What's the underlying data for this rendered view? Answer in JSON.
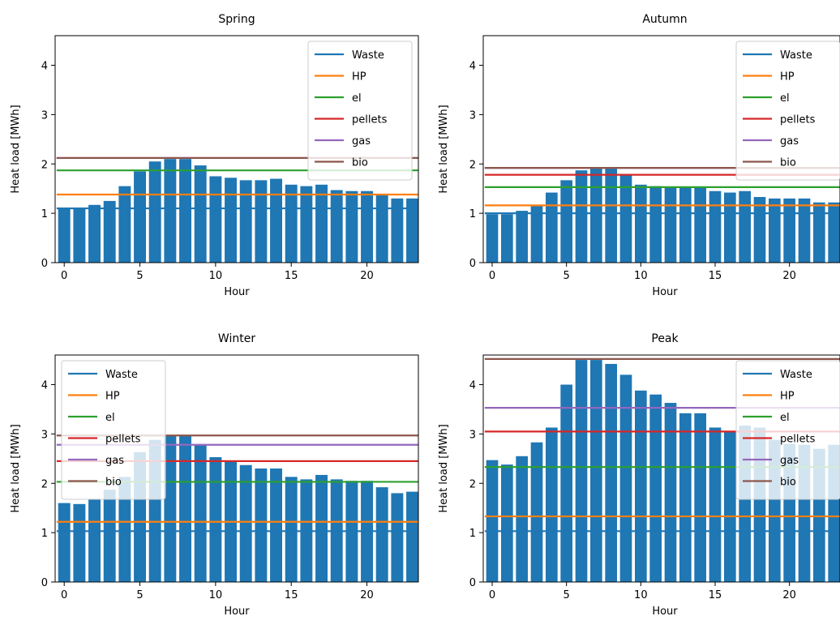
{
  "chart_data": [
    {
      "type": "bar",
      "title": "Spring",
      "xlabel": "Hour",
      "ylabel": "Heat load [MWh]",
      "xlim": [
        -0.6,
        23.4
      ],
      "ylim": [
        0,
        4.6
      ],
      "xticks": [
        0,
        5,
        10,
        15,
        20
      ],
      "yticks": [
        0,
        1,
        2,
        3,
        4
      ],
      "legend": "upper right",
      "x": [
        0,
        1,
        2,
        3,
        4,
        5,
        6,
        7,
        8,
        9,
        10,
        11,
        12,
        13,
        14,
        15,
        16,
        17,
        18,
        19,
        20,
        21,
        22,
        23
      ],
      "values": [
        1.1,
        1.1,
        1.17,
        1.25,
        1.55,
        1.85,
        2.05,
        2.1,
        2.1,
        1.97,
        1.75,
        1.72,
        1.67,
        1.67,
        1.7,
        1.58,
        1.55,
        1.58,
        1.47,
        1.45,
        1.45,
        1.37,
        1.3,
        1.3
      ],
      "bar_color": "#1f77b4",
      "series": [
        {
          "name": "Waste",
          "value": 1.1,
          "color": "#1f77b4"
        },
        {
          "name": "HP",
          "value": 1.38,
          "color": "#ff7f0e"
        },
        {
          "name": "el",
          "value": 1.87,
          "color": "#2ca02c"
        },
        {
          "name": "pellets",
          "value": 2.12,
          "color": "#d62728"
        },
        {
          "name": "gas",
          "value": 2.12,
          "color": "#9467bd"
        },
        {
          "name": "bio",
          "value": 2.12,
          "color": "#8c564b"
        }
      ]
    },
    {
      "type": "bar",
      "title": "Autumn",
      "xlabel": "Hour",
      "ylabel": "Heat load [MWh]",
      "xlim": [
        -0.6,
        23.4
      ],
      "ylim": [
        0,
        4.6
      ],
      "xticks": [
        0,
        5,
        10,
        15,
        20
      ],
      "yticks": [
        0,
        1,
        2,
        3,
        4
      ],
      "legend": "upper right",
      "x": [
        0,
        1,
        2,
        3,
        4,
        5,
        6,
        7,
        8,
        9,
        10,
        11,
        12,
        13,
        14,
        15,
        16,
        17,
        18,
        19,
        20,
        21,
        22,
        23
      ],
      "values": [
        0.98,
        0.98,
        1.05,
        1.15,
        1.42,
        1.67,
        1.87,
        1.93,
        1.93,
        1.77,
        1.58,
        1.55,
        1.52,
        1.52,
        1.52,
        1.45,
        1.42,
        1.45,
        1.33,
        1.3,
        1.3,
        1.3,
        1.22,
        1.22
      ],
      "bar_color": "#1f77b4",
      "series": [
        {
          "name": "Waste",
          "value": 1.0,
          "color": "#1f77b4"
        },
        {
          "name": "HP",
          "value": 1.16,
          "color": "#ff7f0e"
        },
        {
          "name": "el",
          "value": 1.53,
          "color": "#2ca02c"
        },
        {
          "name": "pellets",
          "value": 1.78,
          "color": "#d62728"
        },
        {
          "name": "gas",
          "value": 1.92,
          "color": "#9467bd"
        },
        {
          "name": "bio",
          "value": 1.92,
          "color": "#8c564b"
        }
      ]
    },
    {
      "type": "bar",
      "title": "Winter",
      "xlabel": "Hour",
      "ylabel": "Heat load [MWh]",
      "xlim": [
        -0.6,
        23.4
      ],
      "ylim": [
        0,
        4.6
      ],
      "xticks": [
        0,
        5,
        10,
        15,
        20
      ],
      "yticks": [
        0,
        1,
        2,
        3,
        4
      ],
      "legend": "upper left",
      "x": [
        0,
        1,
        2,
        3,
        4,
        5,
        6,
        7,
        8,
        9,
        10,
        11,
        12,
        13,
        14,
        15,
        16,
        17,
        18,
        19,
        20,
        21,
        22,
        23
      ],
      "values": [
        1.6,
        1.58,
        1.67,
        1.87,
        2.13,
        2.63,
        2.88,
        2.98,
        2.98,
        2.77,
        2.53,
        2.45,
        2.37,
        2.3,
        2.3,
        2.13,
        2.08,
        2.17,
        2.08,
        2.05,
        2.05,
        1.92,
        1.8,
        1.83
      ],
      "bar_color": "#1f77b4",
      "series": [
        {
          "name": "Waste",
          "value": 1.03,
          "color": "#1f77b4"
        },
        {
          "name": "HP",
          "value": 1.22,
          "color": "#ff7f0e"
        },
        {
          "name": "el",
          "value": 2.03,
          "color": "#2ca02c"
        },
        {
          "name": "pellets",
          "value": 2.45,
          "color": "#d62728"
        },
        {
          "name": "gas",
          "value": 2.78,
          "color": "#9467bd"
        },
        {
          "name": "bio",
          "value": 2.97,
          "color": "#8c564b"
        }
      ]
    },
    {
      "type": "bar",
      "title": "Peak",
      "xlabel": "Hour",
      "ylabel": "Heat load [MWh]",
      "xlim": [
        -0.6,
        23.4
      ],
      "ylim": [
        0,
        4.6
      ],
      "xticks": [
        0,
        5,
        10,
        15,
        20
      ],
      "yticks": [
        0,
        1,
        2,
        3,
        4
      ],
      "legend": "upper right",
      "x": [
        0,
        1,
        2,
        3,
        4,
        5,
        6,
        7,
        8,
        9,
        10,
        11,
        12,
        13,
        14,
        15,
        16,
        17,
        18,
        19,
        20,
        21,
        22,
        23
      ],
      "values": [
        2.47,
        2.38,
        2.55,
        2.83,
        3.13,
        4.0,
        4.5,
        4.5,
        4.42,
        4.2,
        3.88,
        3.8,
        3.63,
        3.42,
        3.42,
        3.13,
        3.05,
        3.17,
        3.13,
        2.88,
        2.8,
        2.78,
        2.7,
        2.78
      ],
      "bar_color": "#1f77b4",
      "series": [
        {
          "name": "Waste",
          "value": 1.03,
          "color": "#1f77b4"
        },
        {
          "name": "HP",
          "value": 1.33,
          "color": "#ff7f0e"
        },
        {
          "name": "el",
          "value": 2.33,
          "color": "#2ca02c"
        },
        {
          "name": "pellets",
          "value": 3.05,
          "color": "#d62728"
        },
        {
          "name": "gas",
          "value": 3.53,
          "color": "#9467bd"
        },
        {
          "name": "bio",
          "value": 4.52,
          "color": "#8c564b"
        }
      ]
    }
  ]
}
